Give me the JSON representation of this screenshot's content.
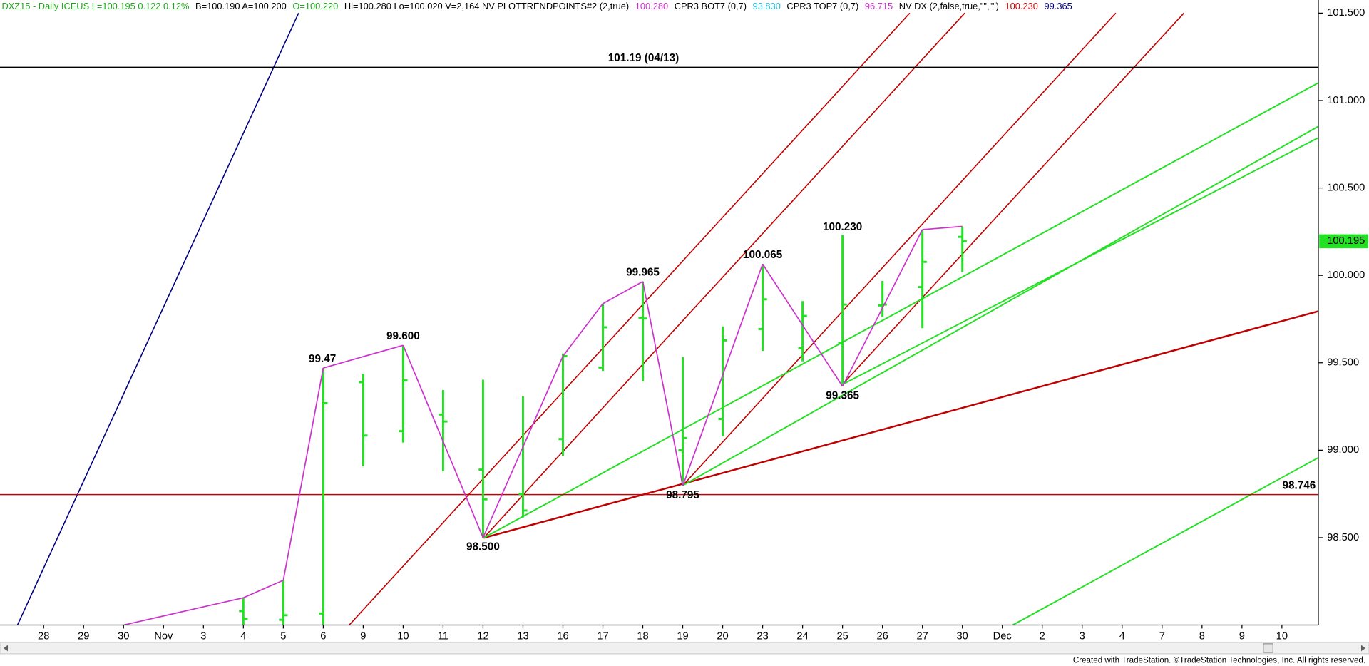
{
  "chart_data": {
    "type": "ohlc",
    "header": [
      {
        "text": "DXZ15 - Daily  ICEUS  L=100.195  0.122  0.12%",
        "color": "#1ea81e"
      },
      {
        "text": "B=100.190  A=100.200",
        "color": "#000000"
      },
      {
        "text": "O=100.220",
        "color": "#1ea81e"
      },
      {
        "text": "Hi=100.280  Lo=100.020  V=2,164  NV  PLOTTRENDPOINTS#2 (2,true)",
        "color": "#000000"
      },
      {
        "text": "100.280",
        "color": "#cc33cc"
      },
      {
        "text": "CPR3 BOT7 (0,7)",
        "color": "#000000"
      },
      {
        "text": "93.830",
        "color": "#22bbdd"
      },
      {
        "text": "CPR3 TOP7 (0,7)",
        "color": "#000000"
      },
      {
        "text": "96.715",
        "color": "#cc33cc"
      },
      {
        "text": "NV DX (2,false,true,\"\",\"\")",
        "color": "#000000"
      },
      {
        "text": "100.230",
        "color": "#cc0000"
      },
      {
        "text": "99.365",
        "color": "#000080"
      }
    ],
    "categories": [
      "28",
      "29",
      "30",
      "Nov",
      "3",
      "4",
      "5",
      "6",
      "9",
      "10",
      "11",
      "12",
      "13",
      "16",
      "17",
      "18",
      "19",
      "20",
      "23",
      "24",
      "25",
      "26",
      "27",
      "30",
      "Dec",
      "2",
      "3",
      "4",
      "7",
      "8",
      "9",
      "10"
    ],
    "ylim": [
      98.0,
      101.575
    ],
    "yticks": [
      {
        "value": 101.5,
        "label": "101.500"
      },
      {
        "value": 101.0,
        "label": "101.000"
      },
      {
        "value": 100.5,
        "label": "100.500"
      },
      {
        "value": 100.0,
        "label": "100.000"
      },
      {
        "value": 99.5,
        "label": "99.500"
      },
      {
        "value": 99.0,
        "label": "99.000"
      },
      {
        "value": 98.5,
        "label": "98.500"
      }
    ],
    "bars": {
      "color": "#22e022",
      "open": [
        null,
        null,
        null,
        null,
        null,
        98.08,
        98.03,
        98.066,
        99.389,
        99.109,
        99.204,
        98.889,
        98.75,
        99.064,
        99.473,
        99.758,
        99.0,
        99.179,
        99.693,
        99.583,
        99.613,
        99.828,
        99.933,
        100.22,
        null,
        null,
        null,
        null,
        null,
        null,
        null,
        null
      ],
      "high": [
        null,
        null,
        null,
        null,
        null,
        98.156,
        98.256,
        99.47,
        99.438,
        99.6,
        99.344,
        99.403,
        99.309,
        99.553,
        99.838,
        99.965,
        99.533,
        99.708,
        100.065,
        99.853,
        100.23,
        99.968,
        100.262,
        100.28,
        null,
        null,
        null,
        null,
        null,
        null,
        null,
        null
      ],
      "low": [
        null,
        null,
        null,
        null,
        null,
        98.0,
        98.0,
        98.0,
        98.909,
        99.044,
        98.879,
        98.5,
        98.615,
        98.969,
        99.453,
        99.394,
        98.795,
        99.079,
        99.568,
        99.508,
        99.365,
        99.763,
        99.698,
        100.02,
        null,
        null,
        null,
        null,
        null,
        null,
        null,
        null
      ],
      "close": [
        null,
        null,
        null,
        null,
        null,
        98.036,
        98.056,
        99.269,
        99.084,
        99.399,
        99.164,
        98.719,
        98.655,
        99.538,
        99.703,
        99.753,
        99.069,
        99.628,
        99.863,
        99.768,
        99.833,
        99.833,
        100.077,
        100.195,
        null,
        null,
        null,
        null,
        null,
        null,
        null,
        null
      ],
      "high_labels": [
        null,
        null,
        null,
        null,
        null,
        null,
        null,
        null,
        null,
        null,
        null,
        null,
        null,
        null,
        null,
        null,
        null,
        null,
        null,
        null,
        "100.230",
        null,
        null,
        null,
        null,
        null,
        null,
        null,
        null,
        null,
        null,
        null
      ]
    },
    "zigzag": {
      "color": "#cc33cc",
      "values": [
        null,
        null,
        98.0,
        null,
        null,
        98.156,
        98.256,
        99.47,
        null,
        99.6,
        null,
        98.5,
        null,
        99.538,
        99.838,
        99.965,
        98.795,
        null,
        100.065,
        null,
        99.365,
        null,
        100.262,
        100.28,
        null,
        null,
        null,
        null,
        null,
        null,
        null,
        null
      ],
      "value_labels": [
        null,
        null,
        null,
        null,
        null,
        null,
        null,
        "99.47",
        null,
        "99.600",
        null,
        "98.500",
        null,
        null,
        null,
        "99.965",
        "98.795",
        null,
        "100.065",
        null,
        "99.365",
        null,
        null,
        null,
        null,
        null,
        null,
        null,
        null,
        null,
        null,
        null
      ]
    },
    "levels": [
      {
        "value": 101.19,
        "label": "101.19 (04/13)",
        "color": "#000000"
      },
      {
        "value": 98.746,
        "label": "98.746",
        "color": "#cc0000"
      }
    ],
    "last": {
      "value": 100.195,
      "label": "100.195",
      "color": "#22e022"
    },
    "footer": "Created with TradeStation. ©TradeStation Technologies, Inc. All rights reserved."
  }
}
